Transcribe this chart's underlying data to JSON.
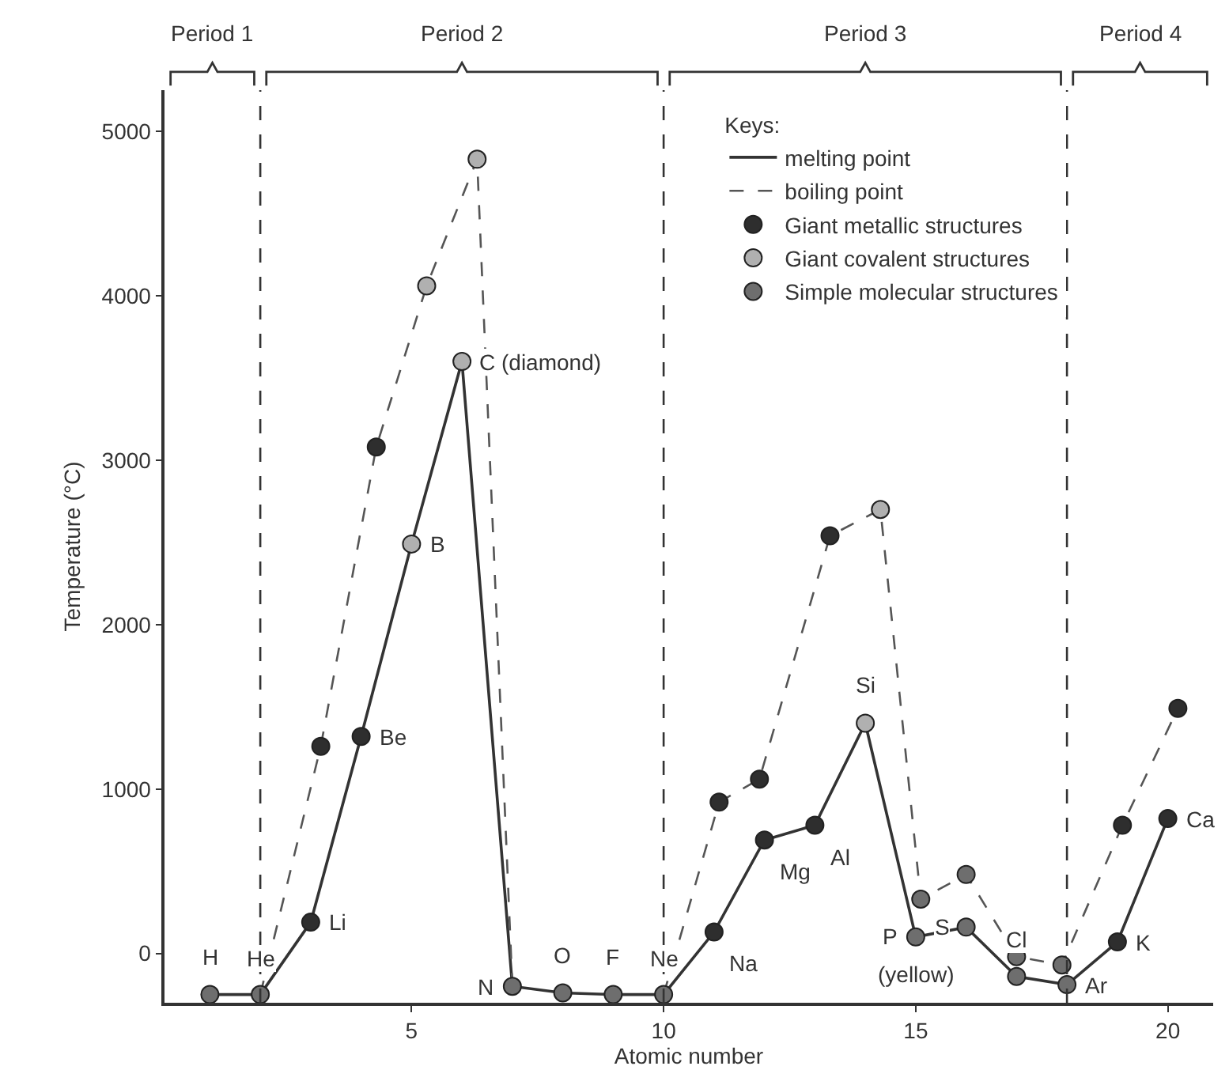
{
  "chart_data": {
    "type": "line",
    "xlabel": "Atomic number",
    "ylabel": "Temperature (°C)",
    "legend_title": "Keys:",
    "legend": "top right",
    "grid": false,
    "xlim": [
      0.1,
      20.9
    ],
    "xticks": [
      5,
      10,
      15,
      20
    ],
    "ylim": [
      -300,
      5250
    ],
    "yticks": [
      0,
      1000,
      2000,
      3000,
      4000,
      5000
    ],
    "series": [
      {
        "name": "melting point",
        "color": "#333333",
        "line_style": "solid",
        "marker": "none",
        "x": [
          1,
          2,
          3,
          4,
          5,
          6,
          7,
          8,
          9,
          10,
          11,
          12,
          13,
          14,
          15,
          16,
          17,
          18,
          19,
          20
        ],
        "values": [
          -250,
          -250,
          190,
          1320,
          2490,
          3600,
          -200,
          -240,
          -250,
          -250,
          130,
          690,
          780,
          1400,
          100,
          160,
          -140,
          -190,
          70,
          820
        ]
      },
      {
        "name": "boiling point",
        "color": "#555555",
        "line_style": "dashed",
        "marker": "none",
        "x": [
          2,
          3.2,
          4.3,
          5.3,
          6.3,
          7,
          8.5,
          10,
          11.1,
          11.9,
          13.3,
          14.3,
          15.1,
          16,
          17,
          17.9,
          19.1,
          20.2
        ],
        "values": [
          -250,
          1260,
          3080,
          4060,
          4830,
          -200,
          null,
          -250,
          920,
          1060,
          2540,
          2700,
          330,
          480,
          -20,
          -70,
          780,
          1490
        ]
      },
      {
        "name": "Giant metallic structures",
        "type": "scatter",
        "color": "#2e2e2e",
        "marker": "circle",
        "x": [
          3,
          4,
          11,
          12,
          13,
          19,
          20,
          3.2,
          4.3,
          11.1,
          11.9,
          13.3,
          19.1,
          20.2
        ],
        "values": [
          190,
          1320,
          130,
          690,
          780,
          70,
          820,
          1260,
          3080,
          920,
          1060,
          2540,
          780,
          1490
        ]
      },
      {
        "name": "Giant covalent structures",
        "type": "scatter",
        "color": "#b0b0b0",
        "marker": "circle",
        "x": [
          5,
          6,
          14,
          5.3,
          6.3,
          14.3
        ],
        "values": [
          2490,
          3600,
          1400,
          4060,
          4830,
          2700
        ]
      },
      {
        "name": "Simple molecular structures",
        "type": "scatter",
        "color": "#6e6e6e",
        "marker": "circle",
        "x": [
          1,
          2,
          7,
          8,
          9,
          10,
          15,
          16,
          17,
          18,
          15.1,
          16,
          17,
          17.9
        ],
        "values": [
          -250,
          -250,
          -200,
          -240,
          -250,
          -250,
          100,
          160,
          -140,
          -190,
          330,
          480,
          -20,
          -70
        ]
      }
    ],
    "ref_lines": [
      {
        "axis": "x",
        "value": 2,
        "color": "#333333",
        "line_style": "dashed"
      },
      {
        "axis": "x",
        "value": 10,
        "color": "#333333",
        "line_style": "dashed"
      },
      {
        "axis": "x",
        "value": 18,
        "color": "#333333",
        "line_style": "dashed"
      }
    ],
    "annotations": [
      "Period 1",
      "Period 2",
      "Period 3",
      "Period 4",
      {
        "text": "H",
        "x": 1,
        "y": -250
      },
      {
        "text": "He",
        "x": 2,
        "y": -250
      },
      {
        "text": "Li",
        "x": 3,
        "y": 190
      },
      {
        "text": "Be",
        "x": 4,
        "y": 1320
      },
      {
        "text": "B",
        "x": 5,
        "y": 2490
      },
      {
        "text": "C (diamond)",
        "x": 6,
        "y": 3600
      },
      {
        "text": "N",
        "x": 7,
        "y": -200
      },
      {
        "text": "O",
        "x": 8,
        "y": -240
      },
      {
        "text": "F",
        "x": 9,
        "y": -250
      },
      {
        "text": "Ne",
        "x": 10,
        "y": -250
      },
      {
        "text": "Na",
        "x": 11,
        "y": 130
      },
      {
        "text": "Mg",
        "x": 12,
        "y": 690
      },
      {
        "text": "Al",
        "x": 13,
        "y": 780
      },
      {
        "text": "Si",
        "x": 14,
        "y": 1400
      },
      {
        "text": "P",
        "x": 15,
        "y": 100
      },
      {
        "text": "(yellow)",
        "x": 15,
        "y": 100
      },
      {
        "text": "S",
        "x": 16,
        "y": 160
      },
      {
        "text": "Cl",
        "x": 17,
        "y": -140
      },
      {
        "text": "Ar",
        "x": 18,
        "y": -190
      },
      {
        "text": "K",
        "x": 19,
        "y": 70
      },
      {
        "text": "Ca",
        "x": 20,
        "y": 820
      }
    ]
  }
}
